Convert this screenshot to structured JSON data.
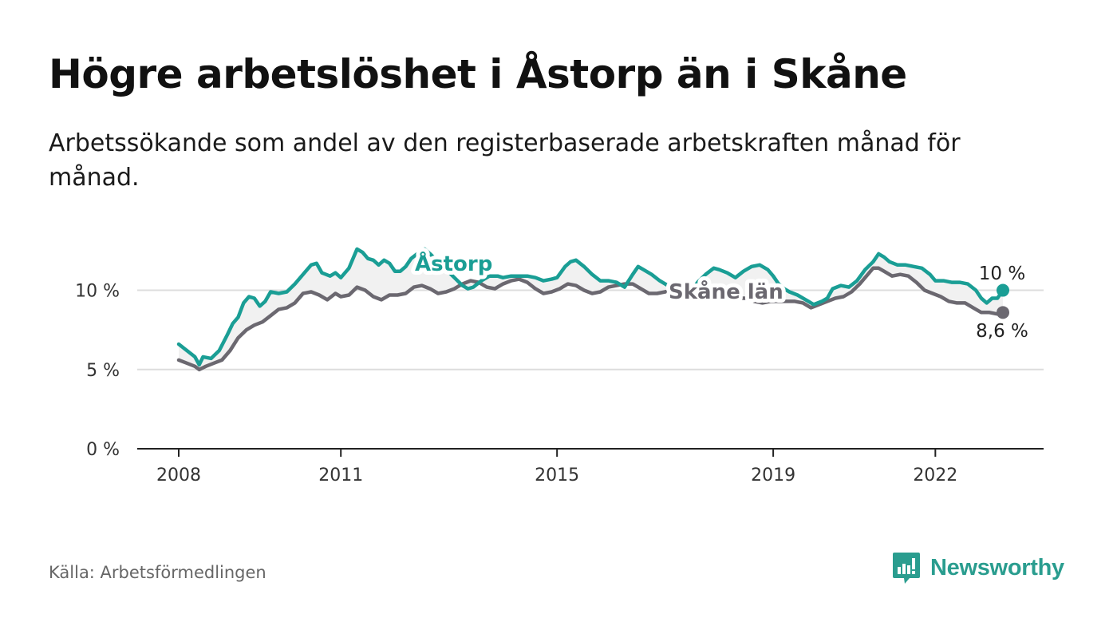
{
  "title": "Högre arbetslöshet i Åstorp än i Skåne",
  "subtitle": "Arbetssökande som andel av den registerbaserade arbetskraften månad för månad.",
  "source": "Källa: Arbetsförmedlingen",
  "brand": "Newsworthy",
  "colors": {
    "astorp": "#1a9e95",
    "skane": "#6b6870",
    "grid": "#dddddd",
    "axis": "#222222",
    "fill": "#f1f1f1"
  },
  "chart_data": {
    "type": "line",
    "title": "Högre arbetslöshet i Åstorp än i Skåne",
    "xlabel": "",
    "ylabel": "",
    "x_domain": [
      2008.0,
      2023.25
    ],
    "ylim": [
      0,
      13
    ],
    "y_ticks": [
      {
        "value": 0,
        "label": "0 %"
      },
      {
        "value": 5,
        "label": "5 %"
      },
      {
        "value": 10,
        "label": "10 %"
      }
    ],
    "x_ticks": [
      {
        "value": 2008,
        "label": "2008"
      },
      {
        "value": 2011,
        "label": "2011"
      },
      {
        "value": 2015,
        "label": "2015"
      },
      {
        "value": 2019,
        "label": "2019"
      },
      {
        "value": 2022,
        "label": "2022"
      }
    ],
    "gridlines": true,
    "series": [
      {
        "name": "Åstorp",
        "label": "Åstorp",
        "end_label": "10 %",
        "color": "#1a9e95",
        "points": [
          [
            2008.0,
            6.6
          ],
          [
            2008.15,
            6.2
          ],
          [
            2008.3,
            5.8
          ],
          [
            2008.38,
            5.3
          ],
          [
            2008.45,
            5.8
          ],
          [
            2008.6,
            5.7
          ],
          [
            2008.75,
            6.2
          ],
          [
            2008.9,
            7.2
          ],
          [
            2009.0,
            7.9
          ],
          [
            2009.1,
            8.3
          ],
          [
            2009.2,
            9.2
          ],
          [
            2009.3,
            9.6
          ],
          [
            2009.4,
            9.5
          ],
          [
            2009.5,
            9.0
          ],
          [
            2009.6,
            9.3
          ],
          [
            2009.7,
            9.9
          ],
          [
            2009.85,
            9.8
          ],
          [
            2010.0,
            9.9
          ],
          [
            2010.15,
            10.4
          ],
          [
            2010.3,
            11.0
          ],
          [
            2010.45,
            11.6
          ],
          [
            2010.55,
            11.7
          ],
          [
            2010.65,
            11.1
          ],
          [
            2010.8,
            10.9
          ],
          [
            2010.9,
            11.1
          ],
          [
            2011.0,
            10.8
          ],
          [
            2011.15,
            11.4
          ],
          [
            2011.3,
            12.6
          ],
          [
            2011.4,
            12.4
          ],
          [
            2011.5,
            12.0
          ],
          [
            2011.6,
            11.9
          ],
          [
            2011.7,
            11.6
          ],
          [
            2011.8,
            11.9
          ],
          [
            2011.9,
            11.7
          ],
          [
            2012.0,
            11.2
          ],
          [
            2012.1,
            11.2
          ],
          [
            2012.2,
            11.5
          ],
          [
            2012.3,
            12.0
          ],
          [
            2012.45,
            12.4
          ],
          [
            2012.55,
            12.6
          ],
          [
            2012.65,
            12.3
          ],
          [
            2012.8,
            11.8
          ],
          [
            2012.95,
            11.3
          ],
          [
            2013.1,
            10.8
          ],
          [
            2013.25,
            10.3
          ],
          [
            2013.35,
            10.1
          ],
          [
            2013.45,
            10.2
          ],
          [
            2013.6,
            10.6
          ],
          [
            2013.75,
            10.9
          ],
          [
            2013.9,
            10.9
          ],
          [
            2014.0,
            10.8
          ],
          [
            2014.15,
            10.9
          ],
          [
            2014.3,
            10.9
          ],
          [
            2014.45,
            10.9
          ],
          [
            2014.6,
            10.8
          ],
          [
            2014.75,
            10.6
          ],
          [
            2014.9,
            10.7
          ],
          [
            2015.0,
            10.8
          ],
          [
            2015.15,
            11.5
          ],
          [
            2015.25,
            11.8
          ],
          [
            2015.35,
            11.9
          ],
          [
            2015.5,
            11.5
          ],
          [
            2015.65,
            11.0
          ],
          [
            2015.8,
            10.6
          ],
          [
            2015.95,
            10.6
          ],
          [
            2016.1,
            10.5
          ],
          [
            2016.25,
            10.2
          ],
          [
            2016.4,
            11.0
          ],
          [
            2016.5,
            11.5
          ],
          [
            2016.6,
            11.3
          ],
          [
            2016.75,
            11.0
          ],
          [
            2016.9,
            10.6
          ],
          [
            2017.05,
            10.3
          ],
          [
            2017.2,
            10.0
          ],
          [
            2017.35,
            9.8
          ],
          [
            2017.5,
            10.0
          ],
          [
            2017.6,
            10.5
          ],
          [
            2017.75,
            11.0
          ],
          [
            2017.9,
            11.4
          ],
          [
            2018.0,
            11.3
          ],
          [
            2018.15,
            11.1
          ],
          [
            2018.3,
            10.8
          ],
          [
            2018.45,
            11.2
          ],
          [
            2018.6,
            11.5
          ],
          [
            2018.75,
            11.6
          ],
          [
            2018.9,
            11.3
          ],
          [
            2019.0,
            10.9
          ],
          [
            2019.1,
            10.4
          ],
          [
            2019.2,
            10.1
          ],
          [
            2019.3,
            9.9
          ],
          [
            2019.45,
            9.7
          ],
          [
            2019.6,
            9.4
          ],
          [
            2019.75,
            9.1
          ],
          [
            2019.9,
            9.3
          ],
          [
            2020.0,
            9.5
          ],
          [
            2020.1,
            10.1
          ],
          [
            2020.25,
            10.3
          ],
          [
            2020.4,
            10.2
          ],
          [
            2020.55,
            10.6
          ],
          [
            2020.7,
            11.3
          ],
          [
            2020.85,
            11.8
          ],
          [
            2020.95,
            12.3
          ],
          [
            2021.05,
            12.1
          ],
          [
            2021.15,
            11.8
          ],
          [
            2021.3,
            11.6
          ],
          [
            2021.45,
            11.6
          ],
          [
            2021.6,
            11.5
          ],
          [
            2021.75,
            11.4
          ],
          [
            2021.9,
            11.0
          ],
          [
            2022.0,
            10.6
          ],
          [
            2022.15,
            10.6
          ],
          [
            2022.3,
            10.5
          ],
          [
            2022.45,
            10.5
          ],
          [
            2022.6,
            10.4
          ],
          [
            2022.75,
            10.0
          ],
          [
            2022.85,
            9.5
          ],
          [
            2022.95,
            9.2
          ],
          [
            2023.05,
            9.5
          ],
          [
            2023.15,
            9.5
          ],
          [
            2023.25,
            10.0
          ]
        ]
      },
      {
        "name": "Skåne län",
        "label": "Skåne län",
        "end_label": "8,6 %",
        "color": "#6b6870",
        "points": [
          [
            2008.0,
            5.6
          ],
          [
            2008.15,
            5.4
          ],
          [
            2008.3,
            5.2
          ],
          [
            2008.38,
            5.0
          ],
          [
            2008.5,
            5.2
          ],
          [
            2008.65,
            5.4
          ],
          [
            2008.8,
            5.6
          ],
          [
            2008.95,
            6.2
          ],
          [
            2009.1,
            7.0
          ],
          [
            2009.25,
            7.5
          ],
          [
            2009.4,
            7.8
          ],
          [
            2009.55,
            8.0
          ],
          [
            2009.7,
            8.4
          ],
          [
            2009.85,
            8.8
          ],
          [
            2010.0,
            8.9
          ],
          [
            2010.15,
            9.2
          ],
          [
            2010.3,
            9.8
          ],
          [
            2010.45,
            9.9
          ],
          [
            2010.6,
            9.7
          ],
          [
            2010.75,
            9.4
          ],
          [
            2010.9,
            9.8
          ],
          [
            2011.0,
            9.6
          ],
          [
            2011.15,
            9.7
          ],
          [
            2011.3,
            10.2
          ],
          [
            2011.45,
            10.0
          ],
          [
            2011.6,
            9.6
          ],
          [
            2011.75,
            9.4
          ],
          [
            2011.9,
            9.7
          ],
          [
            2012.05,
            9.7
          ],
          [
            2012.2,
            9.8
          ],
          [
            2012.35,
            10.2
          ],
          [
            2012.5,
            10.3
          ],
          [
            2012.65,
            10.1
          ],
          [
            2012.8,
            9.8
          ],
          [
            2012.95,
            9.9
          ],
          [
            2013.1,
            10.1
          ],
          [
            2013.25,
            10.4
          ],
          [
            2013.4,
            10.6
          ],
          [
            2013.55,
            10.5
          ],
          [
            2013.7,
            10.2
          ],
          [
            2013.85,
            10.1
          ],
          [
            2014.0,
            10.4
          ],
          [
            2014.15,
            10.6
          ],
          [
            2014.3,
            10.7
          ],
          [
            2014.45,
            10.5
          ],
          [
            2014.6,
            10.1
          ],
          [
            2014.75,
            9.8
          ],
          [
            2014.9,
            9.9
          ],
          [
            2015.05,
            10.1
          ],
          [
            2015.2,
            10.4
          ],
          [
            2015.35,
            10.3
          ],
          [
            2015.5,
            10.0
          ],
          [
            2015.65,
            9.8
          ],
          [
            2015.8,
            9.9
          ],
          [
            2015.95,
            10.2
          ],
          [
            2016.1,
            10.3
          ],
          [
            2016.25,
            10.4
          ],
          [
            2016.4,
            10.4
          ],
          [
            2016.55,
            10.1
          ],
          [
            2016.7,
            9.8
          ],
          [
            2016.85,
            9.8
          ],
          [
            2017.0,
            9.9
          ],
          [
            2017.15,
            10.0
          ],
          [
            2017.3,
            10.0
          ],
          [
            2017.45,
            9.9
          ],
          [
            2017.6,
            9.8
          ],
          [
            2017.75,
            9.7
          ],
          [
            2017.9,
            9.6
          ],
          [
            2018.05,
            9.6
          ],
          [
            2018.2,
            9.6
          ],
          [
            2018.35,
            9.5
          ],
          [
            2018.5,
            9.5
          ],
          [
            2018.65,
            9.3
          ],
          [
            2018.8,
            9.2
          ],
          [
            2018.95,
            9.3
          ],
          [
            2019.1,
            9.3
          ],
          [
            2019.25,
            9.3
          ],
          [
            2019.4,
            9.3
          ],
          [
            2019.55,
            9.2
          ],
          [
            2019.7,
            8.9
          ],
          [
            2019.85,
            9.1
          ],
          [
            2020.0,
            9.3
          ],
          [
            2020.15,
            9.5
          ],
          [
            2020.3,
            9.6
          ],
          [
            2020.45,
            9.9
          ],
          [
            2020.6,
            10.4
          ],
          [
            2020.75,
            11.0
          ],
          [
            2020.85,
            11.4
          ],
          [
            2020.95,
            11.4
          ],
          [
            2021.05,
            11.2
          ],
          [
            2021.2,
            10.9
          ],
          [
            2021.35,
            11.0
          ],
          [
            2021.5,
            10.9
          ],
          [
            2021.65,
            10.5
          ],
          [
            2021.8,
            10.0
          ],
          [
            2021.95,
            9.8
          ],
          [
            2022.1,
            9.6
          ],
          [
            2022.25,
            9.3
          ],
          [
            2022.4,
            9.2
          ],
          [
            2022.55,
            9.2
          ],
          [
            2022.7,
            8.9
          ],
          [
            2022.85,
            8.6
          ],
          [
            2023.0,
            8.6
          ],
          [
            2023.15,
            8.5
          ],
          [
            2023.25,
            8.6
          ]
        ]
      }
    ]
  }
}
